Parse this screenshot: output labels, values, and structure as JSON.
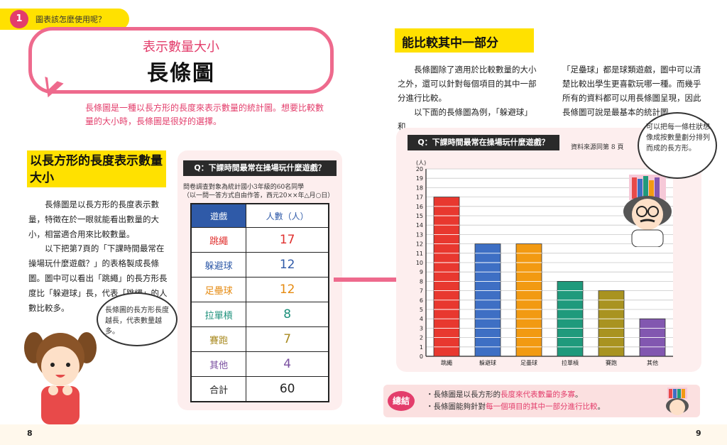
{
  "header": {
    "tab_number": "1",
    "tab_text": "圖表該怎麼使用呢？"
  },
  "bubble": {
    "subtitle": "表示數量大小",
    "title": "長條圖"
  },
  "intro": "長條圖是一種以長方形的長度來表示數量的統計圖。想要比較數量的大小時，長條圖是很好的選擇。",
  "left_section": {
    "heading": "以長方形的長度表示數量大小",
    "para1": "長條圖是以長方形的長度表示數量，特徵在於一眼就能看出數量的大小，相當適合用來比較數量。",
    "para2": "以下把第7頁的「下課時間最常在操場玩什麼遊戲？」的表格製成長條圖。圖中可以看出「跳繩」的長方形長度比「躲避球」長，代表「跳繩」的人數比較多。",
    "girl_speech": "長條圖的長方形長度越長，代表數量越多。"
  },
  "table_panel": {
    "question": "Q：下課時間最常在操場玩什麼遊戲？",
    "note_line1": "問卷調查對象為統計國小3年級的60名同學",
    "note_line2": "（以一問一答方式自由作答，西元20××年△月○日）",
    "headers": [
      "遊戲",
      "人數（人）"
    ],
    "rows": [
      {
        "name": "跳繩",
        "value": "17",
        "color": "#e0312f"
      },
      {
        "name": "躲避球",
        "value": "12",
        "color": "#2f5aa8"
      },
      {
        "name": "足壘球",
        "value": "12",
        "color": "#e58a10"
      },
      {
        "name": "拉單槓",
        "value": "8",
        "color": "#1a8f7a"
      },
      {
        "name": "賽跑",
        "value": "7",
        "color": "#a88a20"
      },
      {
        "name": "其他",
        "value": "4",
        "color": "#7a4fa0"
      }
    ],
    "total_label": "合計",
    "total_value": "60"
  },
  "right_section": {
    "heading": "能比較其中一部分",
    "para_a1": "長條圖除了適用於比較數量的大小之外，還可以針對每個項目的其中一部分進行比較。",
    "para_a2": "以下面的長條圖為例，「躲避球」和",
    "para_b": "「足壘球」都是球類遊戲，圖中可以清楚比較出學生更喜歡玩哪一種。而幾乎所有的資料都可以用長條圖呈現，因此長條圖可說是最基本的統計圖。",
    "teacher_speech": "可以把每一條柱狀想像成按數量劃分排列而成的長方形。"
  },
  "chart_panel": {
    "question": "Q：下課時間最常在操場玩什麼遊戲？",
    "source": "資料來源同第 8 頁"
  },
  "chart_data": {
    "type": "bar",
    "title": "",
    "xlabel": "",
    "ylabel": "(人)",
    "categories": [
      "跳繩",
      "躲避球",
      "足壘球",
      "拉單槓",
      "賽跑",
      "其他"
    ],
    "values": [
      17,
      12,
      12,
      8,
      7,
      4
    ],
    "colors": [
      "#e8382f",
      "#3e6fc4",
      "#f29a12",
      "#1f9a7c",
      "#a99320",
      "#8257b0"
    ],
    "ylim": [
      0,
      20
    ],
    "grid": true
  },
  "summary": {
    "tag": "總結",
    "line1_a": "・長條圖是以長方形的",
    "line1_b": "長度來代表數量的多寡",
    "line1_c": "。",
    "line2_a": "・長條圖能夠針對",
    "line2_b": "每一個項目的其中一部分進行比較",
    "line2_c": "。"
  },
  "pages": {
    "left": "8",
    "right": "9"
  }
}
